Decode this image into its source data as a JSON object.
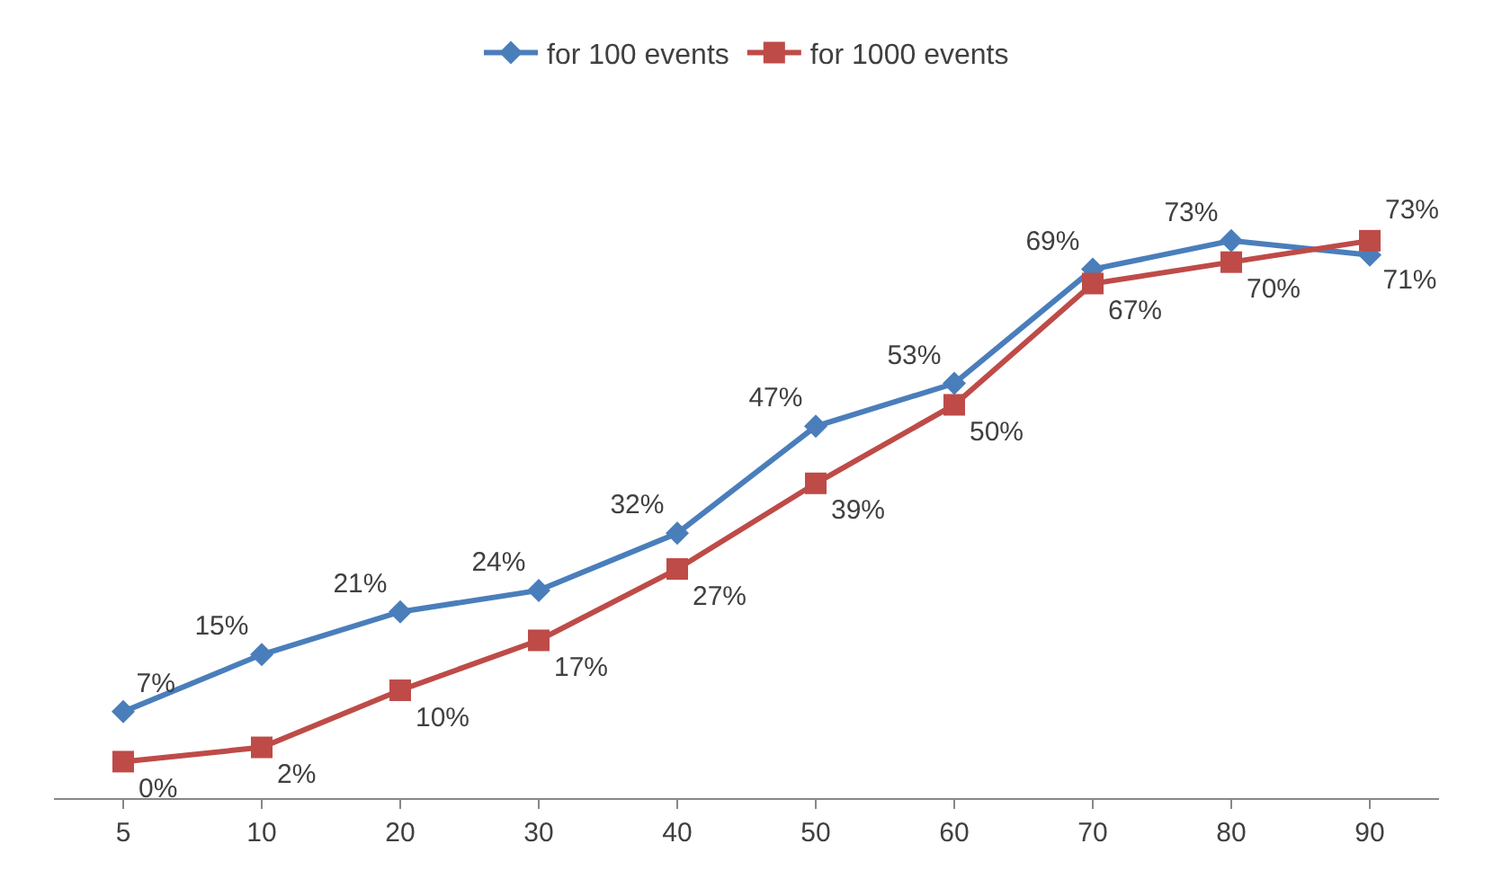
{
  "chart_data": {
    "type": "line",
    "categories": [
      "5",
      "10",
      "20",
      "30",
      "40",
      "50",
      "60",
      "70",
      "80",
      "90"
    ],
    "series": [
      {
        "name": "for 100 events",
        "color": "#4a7ebb",
        "marker": "diamond",
        "values": [
          7,
          15,
          21,
          24,
          32,
          47,
          53,
          69,
          73,
          71
        ],
        "value_labels": [
          "7%",
          "15%",
          "21%",
          "24%",
          "32%",
          "47%",
          "53%",
          "69%",
          "73%",
          "71%"
        ]
      },
      {
        "name": "for 1000 events",
        "color": "#be4b48",
        "marker": "square",
        "values": [
          0,
          2,
          10,
          17,
          27,
          39,
          50,
          67,
          70,
          73
        ],
        "value_labels": [
          "0%",
          "2%",
          "10%",
          "17%",
          "27%",
          "39%",
          "50%",
          "67%",
          "70%",
          "73%"
        ]
      }
    ],
    "legend": "top",
    "grid": false,
    "line_style": "solid"
  }
}
